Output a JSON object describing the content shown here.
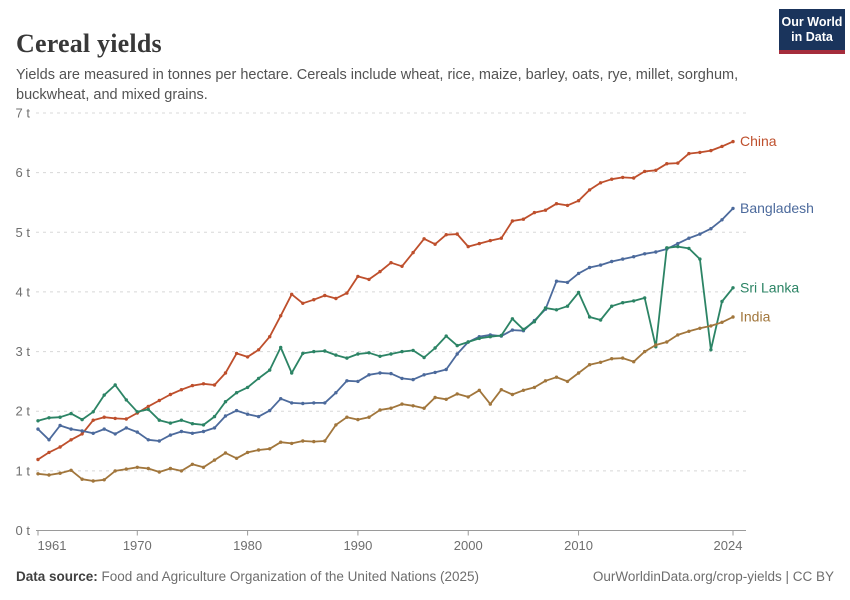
{
  "header": {
    "title": "Cereal yields",
    "subtitle": "Yields are measured in tonnes per hectare. Cereals include wheat, rice, maize, barley, oats, rye, millet, sorghum, buckwheat, and mixed grains.",
    "logo": {
      "line1": "Our World",
      "line2": "in Data",
      "bg_color": "#1A345C",
      "bar_color": "#A52D3C"
    }
  },
  "chart_data": {
    "type": "line",
    "title": "Cereal yields",
    "unit": "tonnes per hectare",
    "grid": true,
    "legend_position": "end-of-line-labels",
    "ylim": [
      0,
      7
    ],
    "y_ticks": [
      0,
      1,
      2,
      3,
      4,
      5,
      6,
      7
    ],
    "y_tick_labels": [
      "0 t",
      "1 t",
      "2 t",
      "3 t",
      "4 t",
      "5 t",
      "6 t",
      "7 t"
    ],
    "x_ticks": [
      1961,
      1970,
      1980,
      1990,
      2000,
      2010,
      2024
    ],
    "x": [
      1961,
      1962,
      1963,
      1964,
      1965,
      1966,
      1967,
      1968,
      1969,
      1970,
      1971,
      1972,
      1973,
      1974,
      1975,
      1976,
      1977,
      1978,
      1979,
      1980,
      1981,
      1982,
      1983,
      1984,
      1985,
      1986,
      1987,
      1988,
      1989,
      1990,
      1991,
      1992,
      1993,
      1994,
      1995,
      1996,
      1997,
      1998,
      1999,
      2000,
      2001,
      2002,
      2003,
      2004,
      2005,
      2006,
      2007,
      2008,
      2009,
      2010,
      2011,
      2012,
      2013,
      2014,
      2015,
      2016,
      2017,
      2018,
      2019,
      2020,
      2021,
      2022,
      2023,
      2024
    ],
    "series": [
      {
        "name": "China",
        "color": "#BE4F2C",
        "values": [
          1.19,
          1.31,
          1.4,
          1.52,
          1.62,
          1.85,
          1.9,
          1.88,
          1.87,
          1.97,
          2.08,
          2.18,
          2.28,
          2.36,
          2.43,
          2.46,
          2.44,
          2.64,
          2.97,
          2.91,
          3.03,
          3.25,
          3.6,
          3.96,
          3.81,
          3.87,
          3.94,
          3.89,
          3.98,
          4.26,
          4.21,
          4.34,
          4.49,
          4.43,
          4.66,
          4.89,
          4.8,
          4.96,
          4.97,
          4.76,
          4.81,
          4.86,
          4.9,
          5.19,
          5.22,
          5.33,
          5.37,
          5.48,
          5.45,
          5.53,
          5.71,
          5.83,
          5.89,
          5.92,
          5.91,
          6.02,
          6.04,
          6.15,
          6.16,
          6.32,
          6.34,
          6.37,
          6.44,
          6.52
        ]
      },
      {
        "name": "Bangladesh",
        "color": "#4C6A9C",
        "values": [
          1.7,
          1.52,
          1.76,
          1.7,
          1.67,
          1.63,
          1.7,
          1.62,
          1.72,
          1.65,
          1.52,
          1.5,
          1.6,
          1.66,
          1.63,
          1.66,
          1.72,
          1.92,
          2.01,
          1.95,
          1.91,
          2.01,
          2.21,
          2.14,
          2.13,
          2.14,
          2.14,
          2.31,
          2.51,
          2.5,
          2.61,
          2.64,
          2.63,
          2.55,
          2.53,
          2.61,
          2.65,
          2.7,
          2.96,
          3.16,
          3.25,
          3.28,
          3.26,
          3.36,
          3.35,
          3.52,
          3.71,
          4.18,
          4.16,
          4.31,
          4.41,
          4.45,
          4.51,
          4.55,
          4.59,
          4.64,
          4.67,
          4.72,
          4.81,
          4.9,
          4.97,
          5.06,
          5.21,
          5.4
        ]
      },
      {
        "name": "Sri Lanka",
        "color": "#2C8465",
        "values": [
          1.84,
          1.89,
          1.9,
          1.96,
          1.86,
          1.99,
          2.27,
          2.44,
          2.19,
          1.99,
          2.03,
          1.85,
          1.8,
          1.85,
          1.79,
          1.77,
          1.91,
          2.16,
          2.31,
          2.4,
          2.55,
          2.69,
          3.07,
          2.64,
          2.97,
          3.0,
          3.01,
          2.94,
          2.89,
          2.96,
          2.98,
          2.92,
          2.96,
          3.0,
          3.02,
          2.9,
          3.06,
          3.26,
          3.1,
          3.16,
          3.22,
          3.25,
          3.27,
          3.55,
          3.37,
          3.5,
          3.73,
          3.7,
          3.76,
          3.99,
          3.58,
          3.53,
          3.76,
          3.82,
          3.85,
          3.9,
          3.08,
          4.74,
          4.76,
          4.73,
          4.55,
          3.03,
          3.84,
          4.07
        ]
      },
      {
        "name": "India",
        "color": "#A1763C",
        "values": [
          0.95,
          0.93,
          0.96,
          1.01,
          0.86,
          0.83,
          0.85,
          1.0,
          1.03,
          1.06,
          1.04,
          0.98,
          1.04,
          1.0,
          1.11,
          1.06,
          1.18,
          1.3,
          1.21,
          1.31,
          1.35,
          1.37,
          1.48,
          1.46,
          1.5,
          1.49,
          1.5,
          1.77,
          1.9,
          1.86,
          1.9,
          2.02,
          2.05,
          2.12,
          2.09,
          2.05,
          2.23,
          2.2,
          2.29,
          2.24,
          2.35,
          2.12,
          2.36,
          2.28,
          2.35,
          2.4,
          2.51,
          2.57,
          2.5,
          2.64,
          2.78,
          2.82,
          2.88,
          2.89,
          2.83,
          3.0,
          3.11,
          3.16,
          3.28,
          3.34,
          3.39,
          3.43,
          3.49,
          3.58
        ]
      }
    ]
  },
  "footer": {
    "source_label": "Data source:",
    "source_text": " Food and Agriculture Organization of the United Nations (2025)",
    "link_text": "OurWorldinData.org/crop-yields | CC BY"
  }
}
